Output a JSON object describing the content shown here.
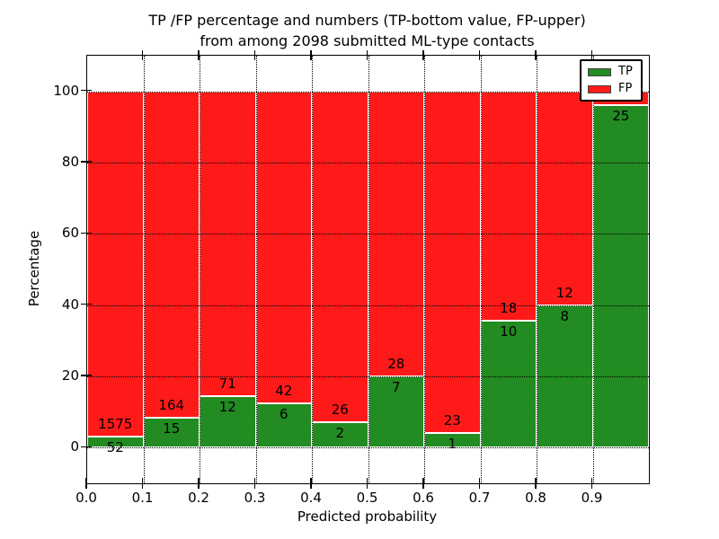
{
  "title": {
    "line1": "TP /FP percentage and numbers (TP-bottom value, FP-upper)",
    "line2": "from among 2098 submitted ML-type contacts"
  },
  "axes": {
    "x_label": "Predicted probability",
    "y_label": "Percentage",
    "x_tick_labels": [
      "0.0",
      "0.1",
      "0.2",
      "0.3",
      "0.4",
      "0.5",
      "0.6",
      "0.7",
      "0.8",
      "0.9"
    ],
    "y_tick_labels": [
      "0",
      "20",
      "40",
      "60",
      "80",
      "100"
    ],
    "y_tick_values": [
      0,
      20,
      40,
      60,
      80,
      100
    ],
    "x_range": [
      0.0,
      1.0
    ],
    "y_range_displayed": [
      -10,
      110
    ],
    "grid": "dotted"
  },
  "legend": {
    "position": "upper right",
    "items": [
      {
        "label": "TP",
        "color": "#228b22"
      },
      {
        "label": "FP",
        "color": "#ff1a1a"
      }
    ]
  },
  "chart_data": {
    "type": "bar",
    "stacked": true,
    "normalized": "each bin sums to 100 percent",
    "title": "TP /FP percentage and numbers (TP-bottom value, FP-upper) from among 2098 submitted ML-type contacts",
    "xlabel": "Predicted probability",
    "ylabel": "Percentage",
    "ylim": [
      -10,
      110
    ],
    "bin_width": 0.1,
    "series_colors": {
      "TP": "#228b22",
      "FP": "#ff1a1a"
    },
    "bins": [
      {
        "x_start": 0.0,
        "x_end": 0.1,
        "tp_count_label": "52",
        "fp_count_label": "1575",
        "tp_pct": 3.2,
        "fp_pct": 96.8
      },
      {
        "x_start": 0.1,
        "x_end": 0.2,
        "tp_count_label": "15",
        "fp_count_label": "164",
        "tp_pct": 8.4,
        "fp_pct": 91.6
      },
      {
        "x_start": 0.2,
        "x_end": 0.3,
        "tp_count_label": "12",
        "fp_count_label": "71",
        "tp_pct": 14.5,
        "fp_pct": 85.5
      },
      {
        "x_start": 0.3,
        "x_end": 0.4,
        "tp_count_label": "6",
        "fp_count_label": "42",
        "tp_pct": 12.5,
        "fp_pct": 87.5
      },
      {
        "x_start": 0.4,
        "x_end": 0.5,
        "tp_count_label": "2",
        "fp_count_label": "26",
        "tp_pct": 7.1,
        "fp_pct": 92.9
      },
      {
        "x_start": 0.5,
        "x_end": 0.6,
        "tp_count_label": "7",
        "fp_count_label": "28",
        "tp_pct": 20.0,
        "fp_pct": 80.0
      },
      {
        "x_start": 0.6,
        "x_end": 0.7,
        "tp_count_label": "1",
        "fp_count_label": "23",
        "tp_pct": 4.2,
        "fp_pct": 95.8
      },
      {
        "x_start": 0.7,
        "x_end": 0.8,
        "tp_count_label": "10",
        "fp_count_label": "18",
        "tp_pct": 35.7,
        "fp_pct": 64.3
      },
      {
        "x_start": 0.8,
        "x_end": 0.9,
        "tp_count_label": "8",
        "fp_count_label": "12",
        "tp_pct": 40.0,
        "fp_pct": 60.0
      },
      {
        "x_start": 0.9,
        "x_end": 1.0,
        "tp_count_label": "25",
        "fp_count_label": "",
        "tp_pct": 96.2,
        "fp_pct": 3.8
      }
    ],
    "notes": "FP count label of the 0.9-1.0 bin is hidden behind the legend box"
  }
}
